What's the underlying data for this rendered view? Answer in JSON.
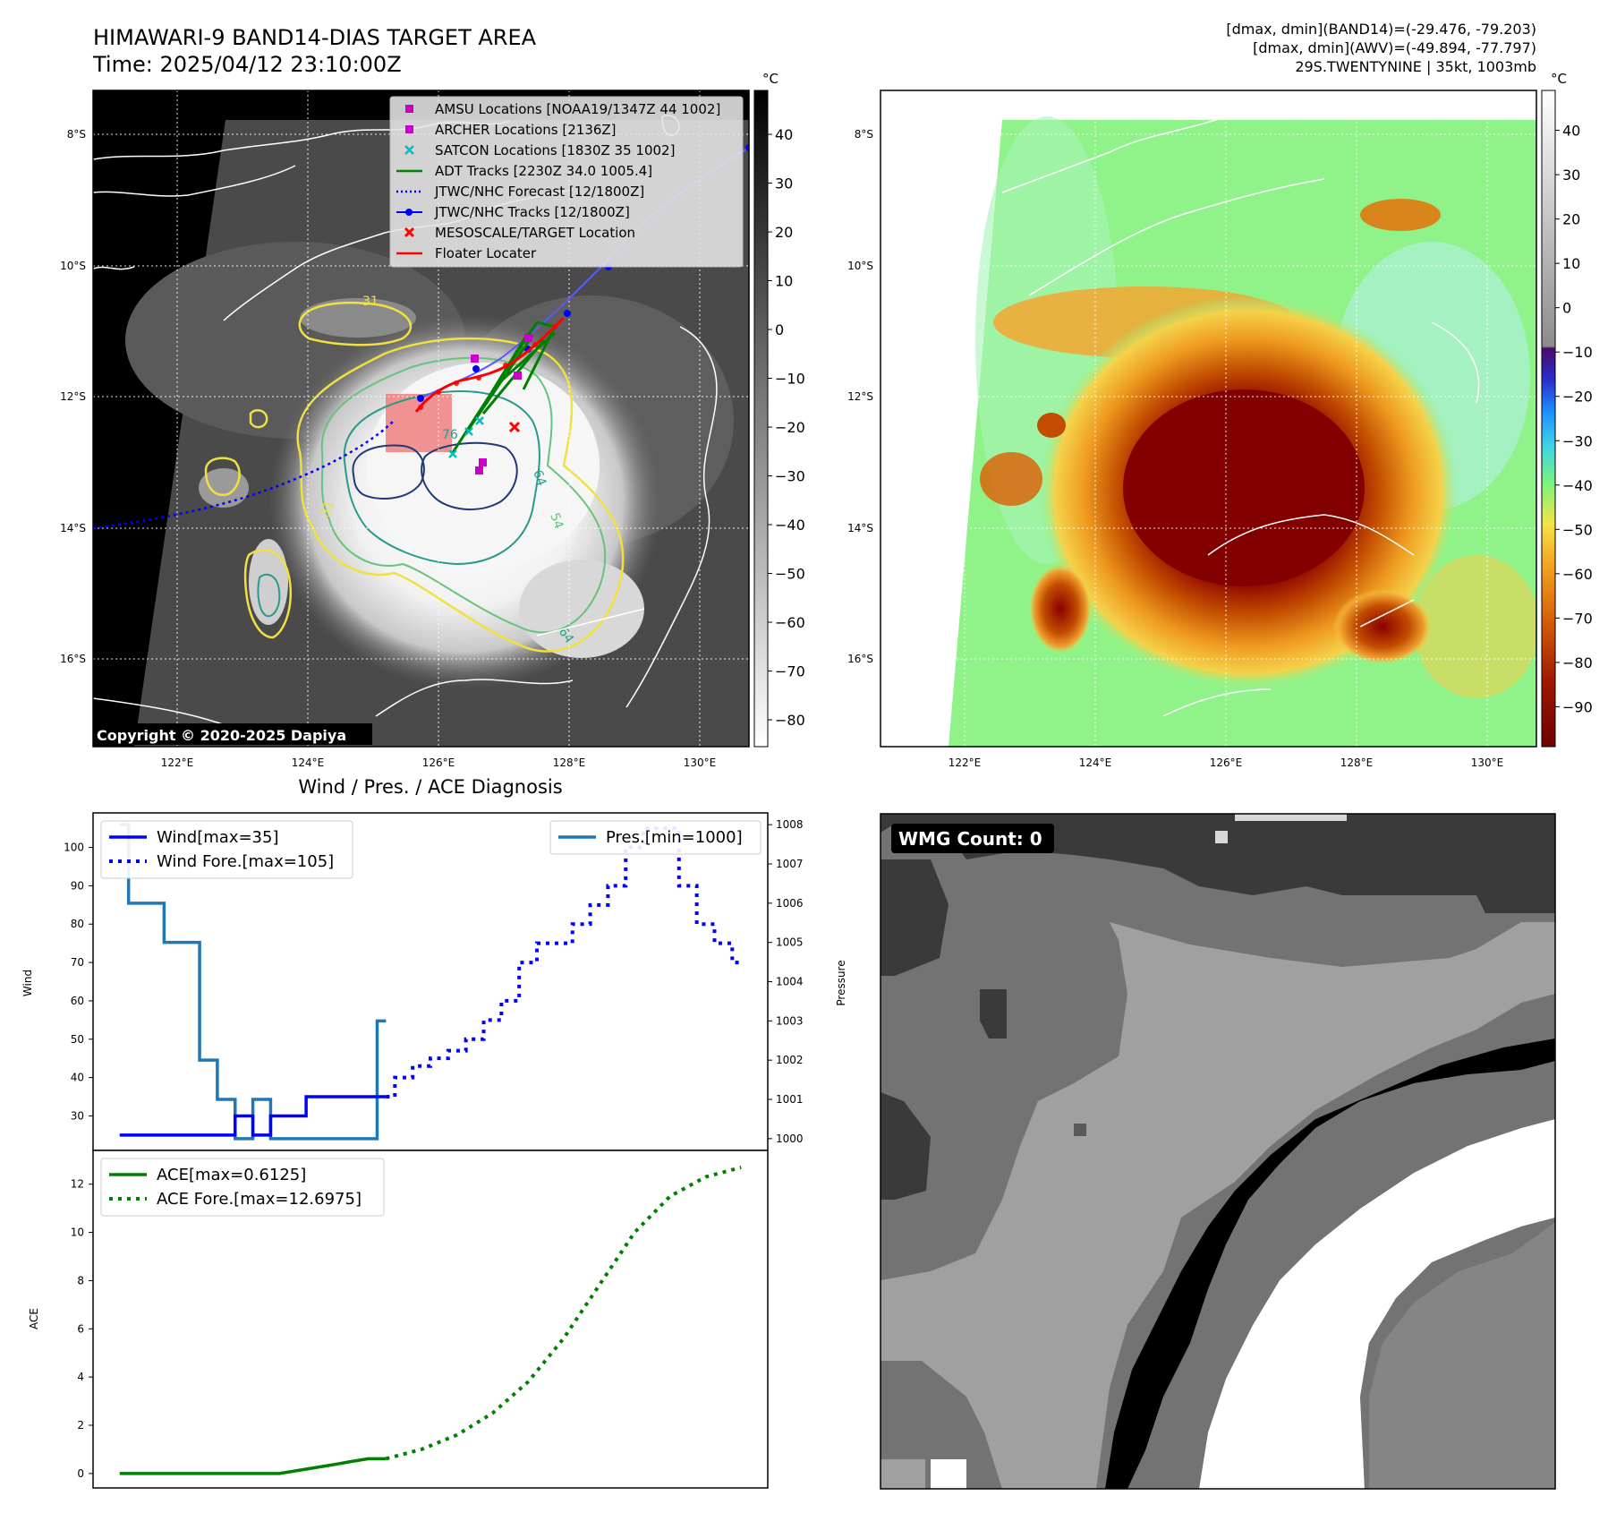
{
  "header": {
    "title_line1": "HIMAWARI-9 BAND14-DIAS TARGET AREA",
    "title_line2": "Time: 2025/04/12 23:10:00Z",
    "info_line1": "[dmax, dmin](BAND14)=(-29.476, -79.203)",
    "info_line2": "[dmax, dmin](AWV)=(-49.894, -77.797)",
    "info_line3": "29S.TWENTYNINE | 35kt, 1003mb"
  },
  "map": {
    "lat_labels": [
      "8°S",
      "10°S",
      "12°S",
      "14°S",
      "16°S"
    ],
    "lon_labels": [
      "122°E",
      "124°E",
      "126°E",
      "128°E",
      "130°E"
    ],
    "copyright": "Copyright © 2020-2025 Dapiya",
    "contour_labels": [
      "31",
      "31",
      "64",
      "54",
      "64",
      "76"
    ],
    "legend": [
      {
        "label": "AMSU Locations [NOAA19/1347Z 44 1002]",
        "color": "#cc00cc",
        "marker": "square"
      },
      {
        "label": "ARCHER Locations [2136Z]",
        "color": "#cc00cc",
        "marker": "square"
      },
      {
        "label": "SATCON Locations [1830Z 35 1002]",
        "color": "#00bfbf",
        "marker": "x"
      },
      {
        "label": "ADT Tracks [2230Z 34.0 1005.4]",
        "color": "#008000",
        "marker": "line"
      },
      {
        "label": "JTWC/NHC Forecast [12/1800Z]",
        "color": "#0000ff",
        "marker": "dotted"
      },
      {
        "label": "JTWC/NHC Tracks [12/1800Z]",
        "color": "#0000ff",
        "marker": "line-dot"
      },
      {
        "label": "MESOSCALE/TARGET Location",
        "color": "#ff0000",
        "marker": "x"
      },
      {
        "label": "Floater Locater",
        "color": "#ff0000",
        "marker": "line"
      }
    ]
  },
  "colorbar_gray": {
    "unit": "°C",
    "ticks": [
      "40",
      "30",
      "20",
      "10",
      "0",
      "−10",
      "−20",
      "−30",
      "−40",
      "−50",
      "−60",
      "−70",
      "−80"
    ]
  },
  "colorbar_color": {
    "unit": "°C",
    "ticks": [
      "40",
      "30",
      "20",
      "10",
      "0",
      "−10",
      "−20",
      "−30",
      "−40",
      "−50",
      "−60",
      "−70",
      "−80",
      "−90"
    ]
  },
  "diagnosis": {
    "title": "Wind / Pres. / ACE Diagnosis",
    "wind_ylabel": "Wind",
    "pres_ylabel": "Pressure",
    "ace_ylabel": "ACE",
    "legend_wind": "Wind[max=35]",
    "legend_wind_fore": "Wind Fore.[max=105]",
    "legend_pres": "Pres.[min=1000]",
    "legend_ace": "ACE[max=0.6125]",
    "legend_ace_fore": "ACE Fore.[max=12.6975]",
    "wind_yticks": [
      "100",
      "90",
      "80",
      "70",
      "60",
      "50",
      "40",
      "30"
    ],
    "pres_yticks": [
      "1008",
      "1007",
      "1006",
      "1005",
      "1004",
      "1003",
      "1002",
      "1001",
      "1000"
    ],
    "ace_yticks": [
      "12",
      "10",
      "8",
      "6",
      "4",
      "2",
      "0"
    ]
  },
  "wmg": {
    "label": "WMG Count: 0"
  },
  "chart_data": [
    {
      "type": "line",
      "title": "Wind / Pres. / ACE Diagnosis",
      "ylabel": "Wind",
      "ylim": [
        21,
        109
      ],
      "series": [
        {
          "name": "Wind[max=35]",
          "x": [
            0,
            1,
            2,
            3,
            4,
            5,
            6,
            7,
            8,
            9,
            10,
            11,
            12,
            13,
            14,
            15
          ],
          "values": [
            25,
            25,
            25,
            25,
            25,
            25,
            25,
            30,
            25,
            30,
            30,
            35,
            35,
            35,
            35,
            35
          ]
        },
        {
          "name": "Wind Fore.[max=105]",
          "x": [
            15,
            16,
            17,
            18,
            19,
            20,
            21,
            22,
            23,
            24,
            25,
            26,
            27,
            28,
            29,
            30,
            31,
            32,
            33,
            34,
            35
          ],
          "values": [
            35,
            40,
            43,
            45,
            47,
            50,
            55,
            60,
            70,
            75,
            75,
            80,
            85,
            90,
            100,
            105,
            105,
            90,
            80,
            75,
            70
          ]
        }
      ]
    },
    {
      "type": "line",
      "ylabel": "Pressure",
      "ylim": [
        999.7,
        1008.3
      ],
      "series": [
        {
          "name": "Pres.[min=1000]",
          "x": [
            0,
            1,
            2,
            3,
            4,
            5,
            6,
            7,
            8,
            9,
            10,
            11,
            12,
            13,
            14,
            15
          ],
          "values": [
            1008,
            1006,
            1006,
            1005,
            1005,
            1002,
            1001,
            1000,
            1001,
            1000,
            1000,
            1000,
            1000,
            1000,
            1000,
            1003
          ]
        }
      ]
    },
    {
      "type": "line",
      "ylabel": "ACE",
      "ylim": [
        -0.6,
        13.4
      ],
      "series": [
        {
          "name": "ACE[max=0.6125]",
          "x": [
            0,
            15
          ],
          "values": [
            0,
            0.6125
          ],
          "x_full": [
            0,
            1,
            2,
            3,
            4,
            5,
            6,
            7,
            8,
            9,
            10,
            11,
            12,
            13,
            14,
            15
          ],
          "values_full": [
            0,
            0,
            0,
            0,
            0,
            0,
            0,
            0,
            0,
            0,
            0.12,
            0.24,
            0.36,
            0.49,
            0.6125,
            0.6125
          ]
        },
        {
          "name": "ACE Fore.[max=12.6975]",
          "x": [
            15,
            17,
            19,
            21,
            23,
            25,
            27,
            29,
            31,
            33,
            35
          ],
          "values": [
            0.6125,
            1.0,
            1.6,
            2.5,
            3.8,
            5.6,
            7.8,
            10.0,
            11.5,
            12.3,
            12.6975
          ]
        }
      ]
    }
  ]
}
